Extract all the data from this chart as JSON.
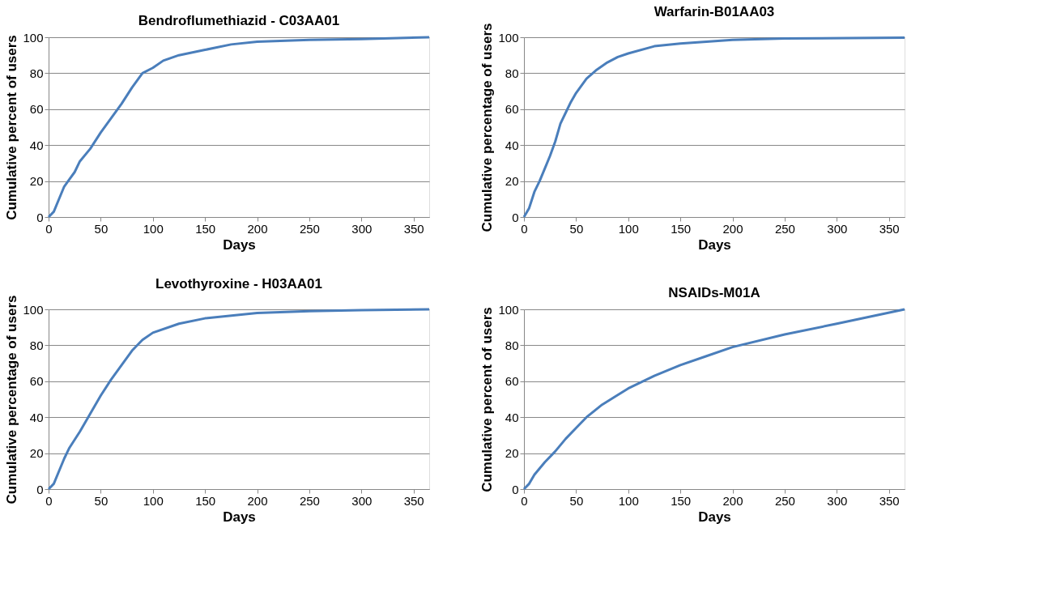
{
  "chart_data": [
    {
      "type": "line",
      "title": "Bendroflumethiazid - C03AA01",
      "xlabel": "Days",
      "ylabel": "Cumulative percent of users",
      "xlim": [
        0,
        365
      ],
      "xticks": [
        0,
        50,
        100,
        150,
        200,
        250,
        300,
        350
      ],
      "ylim": [
        0,
        100
      ],
      "yticks": [
        0,
        20,
        40,
        60,
        80,
        100
      ],
      "grid": "y",
      "marker": "none",
      "line_style": "solid",
      "series": [
        {
          "color": "#4a7ebb",
          "x": [
            0,
            5,
            10,
            15,
            20,
            25,
            30,
            40,
            50,
            60,
            70,
            80,
            90,
            100,
            110,
            125,
            150,
            175,
            200,
            250,
            300,
            365
          ],
          "values": [
            0,
            3,
            10,
            17,
            21,
            25,
            31,
            38,
            47,
            55,
            63,
            72,
            80,
            83,
            87,
            90,
            93,
            96,
            97.5,
            98.5,
            99,
            100
          ]
        }
      ]
    },
    {
      "type": "line",
      "title": "Warfarin-B01AA03",
      "xlabel": "Days",
      "ylabel": "Cumulative percentage of users",
      "xlim": [
        0,
        365
      ],
      "xticks": [
        0,
        50,
        100,
        150,
        200,
        250,
        300,
        350
      ],
      "ylim": [
        0,
        100
      ],
      "yticks": [
        0,
        20,
        40,
        60,
        80,
        100
      ],
      "grid": "y",
      "marker": "none",
      "line_style": "solid",
      "series": [
        {
          "color": "#4a7ebb",
          "x": [
            0,
            5,
            10,
            15,
            20,
            25,
            30,
            35,
            40,
            45,
            50,
            60,
            70,
            80,
            90,
            100,
            125,
            150,
            200,
            250,
            365
          ],
          "values": [
            0,
            5,
            14,
            20,
            27,
            34,
            42,
            52,
            58,
            64,
            69,
            77,
            82,
            86,
            89,
            91,
            95,
            96.5,
            98.5,
            99.3,
            99.8
          ]
        }
      ]
    },
    {
      "type": "line",
      "title": "Levothyroxine - H03AA01",
      "xlabel": "Days",
      "ylabel": "Cumulative percentage of users",
      "xlim": [
        0,
        365
      ],
      "xticks": [
        0,
        50,
        100,
        150,
        200,
        250,
        300,
        350
      ],
      "ylim": [
        0,
        100
      ],
      "yticks": [
        0,
        20,
        40,
        60,
        80,
        100
      ],
      "grid": "y",
      "marker": "none",
      "line_style": "solid",
      "series": [
        {
          "color": "#4a7ebb",
          "x": [
            0,
            5,
            10,
            15,
            20,
            30,
            40,
            50,
            60,
            70,
            80,
            90,
            100,
            125,
            150,
            200,
            250,
            300,
            365
          ],
          "values": [
            0,
            3,
            10,
            17,
            23,
            32,
            42,
            52,
            61,
            69,
            77,
            83,
            87,
            92,
            95,
            98,
            99,
            99.5,
            100
          ]
        }
      ]
    },
    {
      "type": "line",
      "title": "NSAIDs-M01A",
      "xlabel": "Days",
      "ylabel": "Cumulative percent of users",
      "xlim": [
        0,
        365
      ],
      "xticks": [
        0,
        50,
        100,
        150,
        200,
        250,
        300,
        350
      ],
      "ylim": [
        0,
        100
      ],
      "yticks": [
        0,
        20,
        40,
        60,
        80,
        100
      ],
      "grid": "y",
      "marker": "none",
      "line_style": "solid",
      "series": [
        {
          "color": "#4a7ebb",
          "x": [
            0,
            5,
            10,
            20,
            30,
            40,
            50,
            60,
            75,
            100,
            125,
            150,
            175,
            200,
            250,
            300,
            365
          ],
          "values": [
            0,
            3,
            8,
            15,
            21,
            28,
            34,
            40,
            47,
            56,
            63,
            69,
            74,
            79,
            86,
            92,
            100
          ]
        }
      ]
    }
  ]
}
